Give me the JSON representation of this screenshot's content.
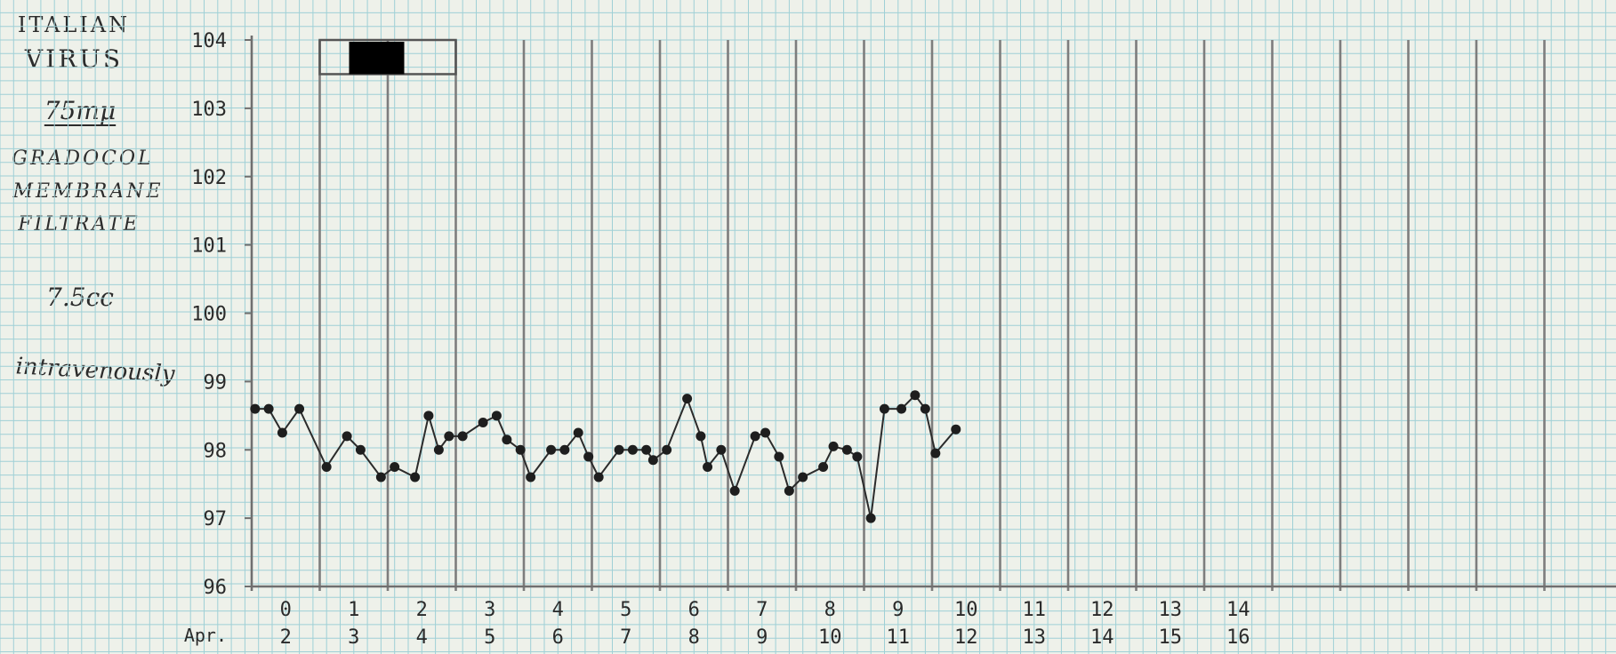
{
  "chart_data": {
    "type": "line",
    "annotation": {
      "line1": "ITALIAN",
      "line2": "VIRUS",
      "size": "75mμ",
      "line3": "GRADOCOL",
      "line4": "MEMBRANE",
      "line5": "FILTRATE",
      "dose": "7.5cc",
      "route": "intravenously"
    },
    "yticks": [
      "104",
      "103",
      "102",
      "101",
      "100",
      "99",
      "98",
      "97",
      "96"
    ],
    "ylim": [
      96,
      104
    ],
    "xlim": [
      -0.5,
      19.5
    ],
    "day_labels": [
      "0",
      "1",
      "2",
      "3",
      "4",
      "5",
      "6",
      "7",
      "8",
      "9",
      "10",
      "11",
      "12",
      "13",
      "14"
    ],
    "date_prefix": "Apr.",
    "date_labels": [
      "2",
      "3",
      "4",
      "5",
      "6",
      "7",
      "8",
      "9",
      "10",
      "11",
      "12",
      "13",
      "14",
      "15",
      "16"
    ],
    "redaction_box": {
      "x_start": 0.5,
      "x_end": 2.5,
      "y_top": 104,
      "y_bottom": 103.5
    },
    "series": [
      {
        "values": [
          [
            -0.45,
            98.6
          ],
          [
            -0.25,
            98.6
          ],
          [
            -0.05,
            98.25
          ],
          [
            0.2,
            98.6
          ],
          [
            0.6,
            97.75
          ],
          [
            0.9,
            98.2
          ],
          [
            1.1,
            98.0
          ],
          [
            1.4,
            97.6
          ],
          [
            1.6,
            97.75
          ],
          [
            1.9,
            97.6
          ],
          [
            2.1,
            98.5
          ],
          [
            2.25,
            98.0
          ],
          [
            2.4,
            98.2
          ],
          [
            2.6,
            98.2
          ],
          [
            2.9,
            98.4
          ],
          [
            3.1,
            98.5
          ],
          [
            3.25,
            98.15
          ],
          [
            3.45,
            98.0
          ],
          [
            3.6,
            97.6
          ],
          [
            3.9,
            98.0
          ],
          [
            4.1,
            98.0
          ],
          [
            4.3,
            98.25
          ],
          [
            4.45,
            97.9
          ],
          [
            4.6,
            97.6
          ],
          [
            4.9,
            98.0
          ],
          [
            5.1,
            98.0
          ],
          [
            5.3,
            98.0
          ],
          [
            5.4,
            97.85
          ],
          [
            5.6,
            98.0
          ],
          [
            5.9,
            98.75
          ],
          [
            6.1,
            98.2
          ],
          [
            6.2,
            97.75
          ],
          [
            6.4,
            98.0
          ],
          [
            6.6,
            97.4
          ],
          [
            6.9,
            98.2
          ],
          [
            7.05,
            98.25
          ],
          [
            7.25,
            97.9
          ],
          [
            7.4,
            97.4
          ],
          [
            7.6,
            97.6
          ],
          [
            7.9,
            97.75
          ],
          [
            8.05,
            98.05
          ],
          [
            8.25,
            98.0
          ],
          [
            8.4,
            97.9
          ],
          [
            8.6,
            97.0
          ],
          [
            8.8,
            98.6
          ],
          [
            9.05,
            98.6
          ],
          [
            9.25,
            98.8
          ],
          [
            9.4,
            98.6
          ],
          [
            9.55,
            97.95
          ],
          [
            9.85,
            98.3
          ]
        ]
      }
    ]
  }
}
